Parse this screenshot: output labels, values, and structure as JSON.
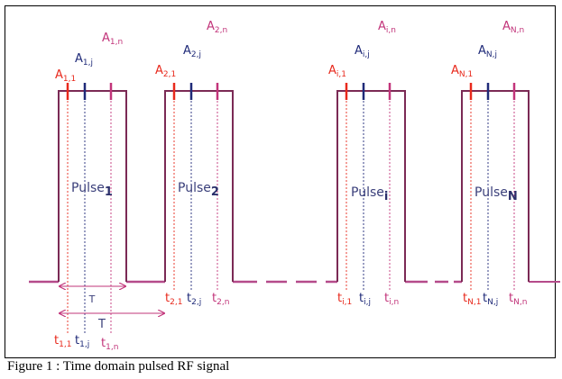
{
  "colors": {
    "pulse": "#7b2a55",
    "first": "#e8291c",
    "mid": "#1f2a78",
    "last": "#c2347a",
    "baseline": "#b54a8a",
    "dims": "#c2347a",
    "label": "#3a3f7a",
    "bold": "#2b2f6b"
  },
  "pulses": [
    {
      "id": "1",
      "label": {
        "base": "Pulse",
        "sub": "1"
      },
      "amp_first": {
        "base": "A",
        "sub": "1,1"
      },
      "amp_mid": {
        "base": "A",
        "sub": "1,j"
      },
      "amp_last": {
        "base": "A",
        "sub": "1,n"
      },
      "time_first": {
        "base": "t",
        "sub": "1,1"
      },
      "time_mid": {
        "base": "t",
        "sub": "1,j"
      },
      "time_last": {
        "base": "t",
        "sub": "1,n"
      }
    },
    {
      "id": "2",
      "label": {
        "base": "Pulse",
        "sub": "2"
      },
      "amp_first": {
        "base": "A",
        "sub": "2,1"
      },
      "amp_mid": {
        "base": "A",
        "sub": "2,j"
      },
      "amp_last": {
        "base": "A",
        "sub": "2,n"
      },
      "time_first": {
        "base": "t",
        "sub": "2,1"
      },
      "time_mid": {
        "base": "t",
        "sub": "2,j"
      },
      "time_last": {
        "base": "t",
        "sub": "2,n"
      }
    },
    {
      "id": "i",
      "label": {
        "base": "Pulse",
        "sub": "i"
      },
      "amp_first": {
        "base": "A",
        "sub": "i,1"
      },
      "amp_mid": {
        "base": "A",
        "sub": "i,j"
      },
      "amp_last": {
        "base": "A",
        "sub": "i,n"
      },
      "time_first": {
        "base": "t",
        "sub": "i,1"
      },
      "time_mid": {
        "base": "t",
        "sub": "i,j"
      },
      "time_last": {
        "base": "t",
        "sub": "i,n"
      }
    },
    {
      "id": "N",
      "label": {
        "base": "Pulse",
        "sub": "N"
      },
      "amp_first": {
        "base": "A",
        "sub": "N,1"
      },
      "amp_mid": {
        "base": "A",
        "sub": "N,j"
      },
      "amp_last": {
        "base": "A",
        "sub": "N,n"
      },
      "time_first": {
        "base": "t",
        "sub": "N,1"
      },
      "time_mid": {
        "base": "t",
        "sub": "N,j"
      },
      "time_last": {
        "base": "t",
        "sub": "N,n"
      }
    }
  ],
  "dimensions": {
    "pulse_width": "T",
    "period": "T"
  },
  "caption": "Figure 1 : Time domain pulsed RF signal"
}
